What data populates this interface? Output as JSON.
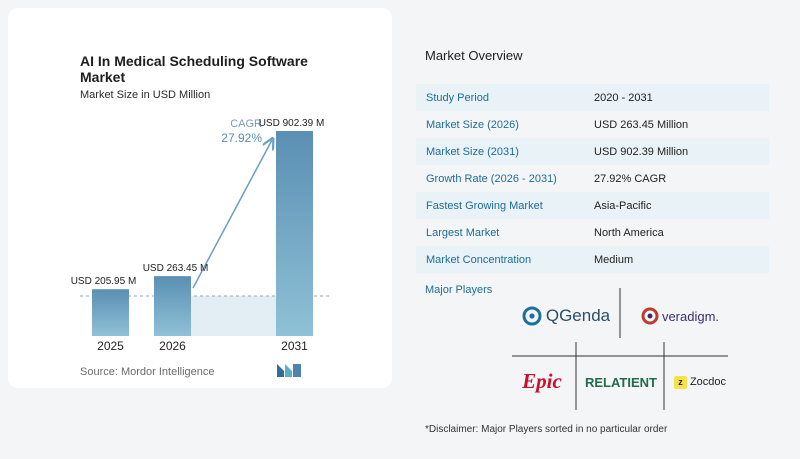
{
  "chart_data": {
    "type": "bar",
    "title": "AI In Medical Scheduling Software Market",
    "subtitle": "Market Size in USD Million",
    "categories": [
      "2025",
      "2026",
      "2031"
    ],
    "values": [
      205.95,
      263.45,
      902.39
    ],
    "value_labels": [
      "USD 205.95 M",
      "USD 263.45 M",
      "USD 902.39 M"
    ],
    "annotation": {
      "label": "CAGR",
      "value": "27.92%"
    },
    "ylim": [
      0,
      902.39
    ],
    "xlabel": "",
    "ylabel": "",
    "colors": {
      "bar_start": "#5a8fb3",
      "bar_end": "#8fc1d6",
      "arrow": "#6a9fc2",
      "shade": "#e3eef4"
    }
  },
  "source": "Source: Mordor Intelligence",
  "overview": {
    "title": "Market Overview",
    "rows": [
      {
        "key": "Study Period",
        "value": "2020 - 2031"
      },
      {
        "key": "Market Size (2026)",
        "value": "USD 263.45 Million"
      },
      {
        "key": "Market Size (2031)",
        "value": "USD 902.39 Million"
      },
      {
        "key": "Growth Rate (2026 - 2031)",
        "value": "27.92% CAGR"
      },
      {
        "key": "Fastest Growing Market",
        "value": "Asia-Pacific"
      },
      {
        "key": "Largest Market",
        "value": "North America"
      },
      {
        "key": "Market Concentration",
        "value": "Medium"
      }
    ],
    "players_label": "Major Players",
    "players": [
      "QGenda",
      "veradigm.",
      "Epic",
      "RELATIENT",
      "Zocdoc"
    ],
    "disclaimer": "*Disclaimer: Major Players sorted in no particular order"
  }
}
